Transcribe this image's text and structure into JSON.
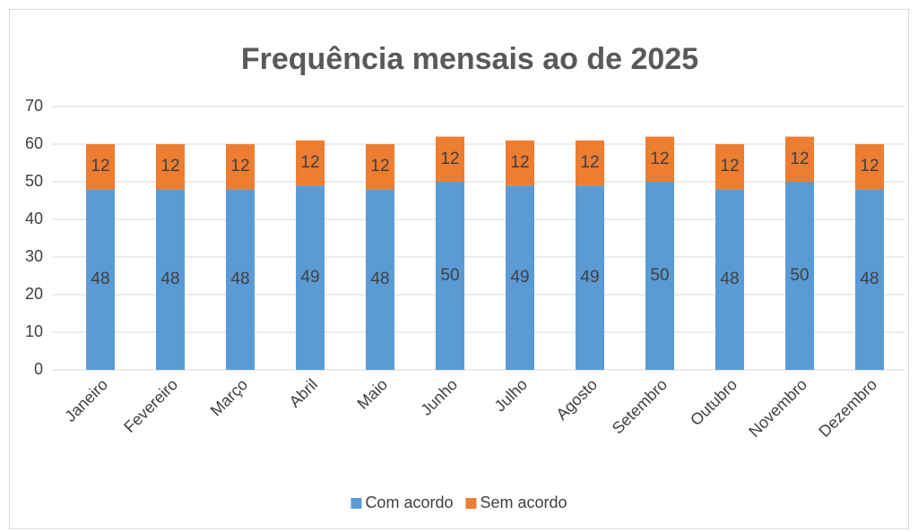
{
  "chart_data": {
    "type": "stacked_bar",
    "title": "Frequência mensais ao de 2025",
    "categories": [
      "Janeiro",
      "Fevereiro",
      "Março",
      "Abril",
      "Maio",
      "Junho",
      "Julho",
      "Agosto",
      "Setembro",
      "Outubro",
      "Novembro",
      "Dezembro"
    ],
    "series": [
      {
        "name": "Com acordo",
        "color": "#5b9bd5",
        "values": [
          48,
          48,
          48,
          49,
          48,
          50,
          49,
          49,
          50,
          48,
          50,
          48
        ]
      },
      {
        "name": "Sem acordo",
        "color": "#ed7d31",
        "values": [
          12,
          12,
          12,
          12,
          12,
          12,
          12,
          12,
          12,
          12,
          12,
          12
        ]
      }
    ],
    "ylim": [
      0,
      70
    ],
    "yticks": [
      0,
      10,
      20,
      30,
      40,
      50,
      60,
      70
    ],
    "grid": true,
    "legend": "bottom"
  }
}
